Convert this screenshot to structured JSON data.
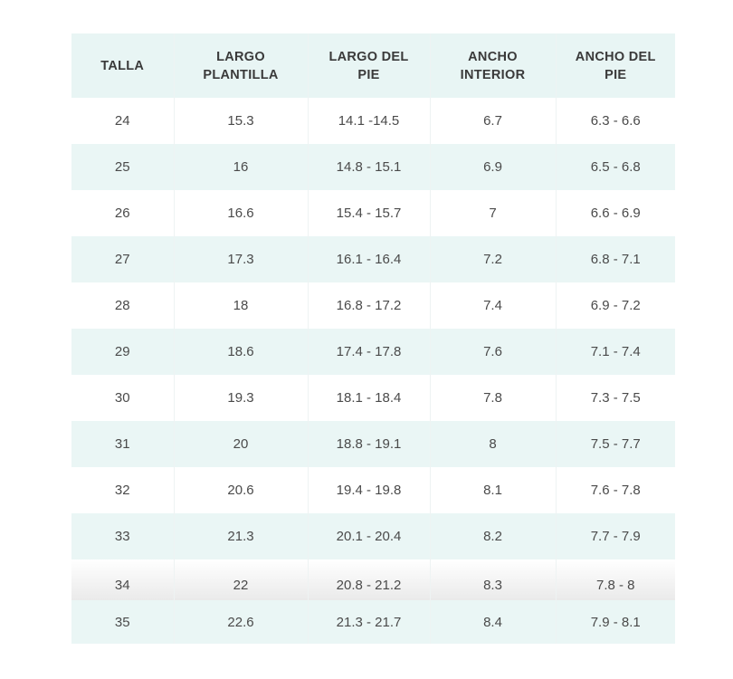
{
  "table": {
    "headers": [
      [
        "TALLA"
      ],
      [
        "LARGO",
        "PLANTILLA"
      ],
      [
        "LARGO DEL",
        "PIE"
      ],
      [
        "ANCHO",
        "INTERIOR"
      ],
      [
        "ANCHO DEL",
        "PIE"
      ]
    ],
    "rows": [
      [
        "24",
        "15.3",
        "14.1 -14.5",
        "6.7",
        "6.3 - 6.6"
      ],
      [
        "25",
        "16",
        "14.8 - 15.1",
        "6.9",
        "6.5 - 6.8"
      ],
      [
        "26",
        "16.6",
        "15.4 - 15.7",
        "7",
        "6.6 - 6.9"
      ],
      [
        "27",
        "17.3",
        "16.1 - 16.4",
        "7.2",
        "6.8 - 7.1"
      ],
      [
        "28",
        "18",
        "16.8 - 17.2",
        "7.4",
        "6.9 - 7.2"
      ],
      [
        "29",
        "18.6",
        "17.4 - 17.8",
        "7.6",
        "7.1 - 7.4"
      ],
      [
        "30",
        "19.3",
        "18.1 - 18.4",
        "7.8",
        "7.3 - 7.5"
      ],
      [
        "31",
        "20",
        "18.8 - 19.1",
        "8",
        "7.5 - 7.7"
      ],
      [
        "32",
        "20.6",
        "19.4 - 19.8",
        "8.1",
        "7.6 - 7.8"
      ],
      [
        "33",
        "21.3",
        "20.1 - 20.4",
        "8.2",
        "7.7 - 7.9"
      ],
      [
        "34",
        "22",
        "20.8 - 21.2",
        "8.3",
        "7.8 - 8"
      ],
      [
        "35",
        "22.6",
        "21.3 - 21.7",
        "8.4",
        "7.9 - 8.1"
      ]
    ]
  }
}
